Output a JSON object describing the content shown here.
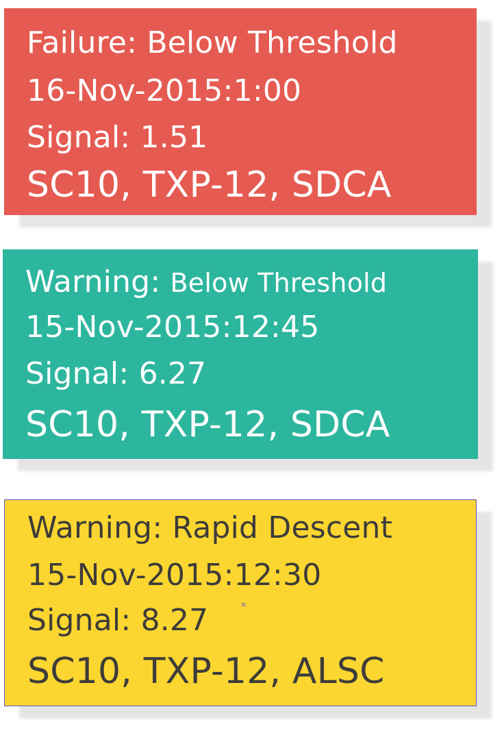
{
  "alerts": [
    {
      "status": "Failure",
      "condition": "Below Threshold",
      "timestamp": "16-Nov-2015:1:00",
      "signal_label": "Signal: 1.51",
      "signal_value": 1.51,
      "path": "SC10, TXP-12, SDCA",
      "color": "#e55b52",
      "text_color": "#ffffff"
    },
    {
      "status": "Warning",
      "condition": "Below Threshold",
      "timestamp": "15-Nov-2015:12:45",
      "signal_label": "Signal: 6.27",
      "signal_value": 6.27,
      "path": "SC10, TXP-12, SDCA",
      "color": "#2db69e",
      "text_color": "#ffffff"
    },
    {
      "status": "Warning",
      "condition": "Rapid Descent",
      "timestamp": "15-Nov-2015:12:30",
      "signal_label": "Signal: 8.27",
      "signal_value": 8.27,
      "path": "SC10, TXP-12, ALSC",
      "color": "#fbd630",
      "text_color": "#3d3c3a",
      "selected": true
    }
  ],
  "separator": ": ",
  "cursor_glyph": "×"
}
